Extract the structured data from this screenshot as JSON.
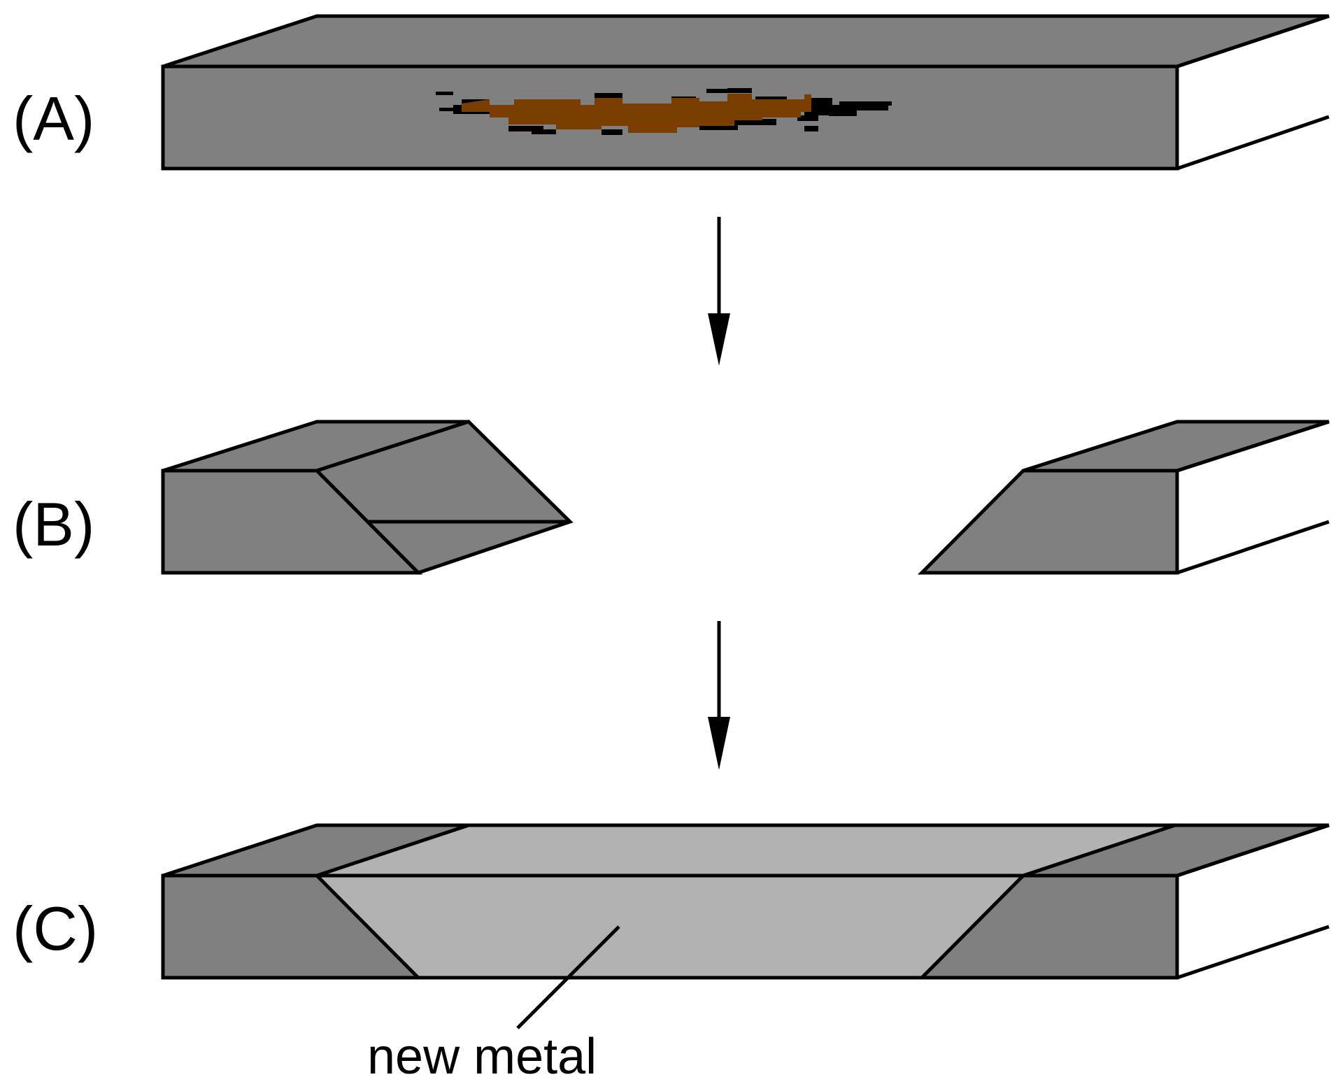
{
  "panels": [
    {
      "id": "A",
      "label": "(A)"
    },
    {
      "id": "B",
      "label": "(B)"
    },
    {
      "id": "C",
      "label": "(C)"
    }
  ],
  "callout": {
    "text": "new metal"
  },
  "colors": {
    "steel": "#808080",
    "new_metal": "#b2b2b2",
    "rust": "#7a3f00",
    "outline": "#000000",
    "background": "#ffffff"
  }
}
